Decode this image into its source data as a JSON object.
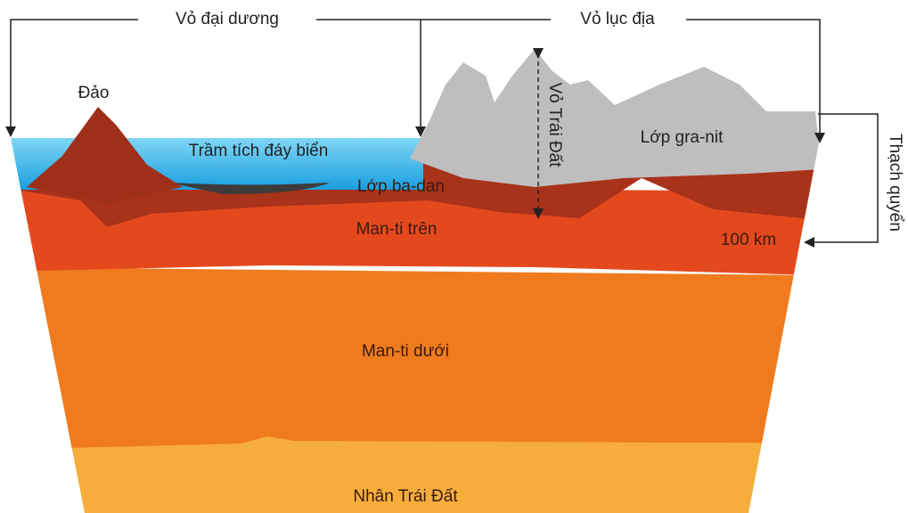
{
  "labels": {
    "oceanic_crust": "Vỏ đại dương",
    "continental_crust": "Vỏ lục địa",
    "island": "Đảo",
    "sediment": "Trầm tích đáy biển",
    "granite": "Lớp gra-nit",
    "basalt": "Lớp ba-dan",
    "upper_mantle": "Man-ti trên",
    "lower_mantle": "Man-ti dưới",
    "core": "Nhân Trái Đất",
    "earth_crust": "Vỏ Trái Đất",
    "lithosphere": "Thạch quyển",
    "depth": "100 km"
  }
}
